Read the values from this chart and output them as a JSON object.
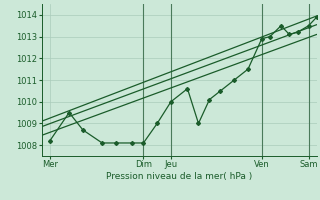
{
  "xlabel": "Pression niveau de la mer( hPa )",
  "bg_color": "#cce8d8",
  "plot_bg_color": "#cce8d8",
  "grid_color": "#aaccbb",
  "line_color": "#1a5c2a",
  "vline_color": "#4a7a5a",
  "ylim": [
    1007.5,
    1014.5
  ],
  "xlim": [
    0.0,
    1.0
  ],
  "yticks": [
    1008,
    1009,
    1010,
    1011,
    1012,
    1013,
    1014
  ],
  "xtick_positions": [
    0.03,
    0.37,
    0.47,
    0.8,
    0.97
  ],
  "xtick_labels": [
    "Mer",
    "Dim",
    "Jeu",
    "Ven",
    "Sam"
  ],
  "vlines": [
    0.37,
    0.47,
    0.8,
    0.97
  ],
  "zigzag_x": [
    0.03,
    0.1,
    0.15,
    0.22,
    0.27,
    0.33,
    0.37,
    0.42,
    0.47,
    0.53,
    0.57,
    0.61,
    0.65,
    0.7,
    0.75,
    0.8,
    0.83,
    0.87,
    0.9,
    0.93,
    0.97,
    1.0
  ],
  "zigzag_y": [
    1008.2,
    1009.5,
    1008.7,
    1008.1,
    1008.1,
    1008.1,
    1008.1,
    1009.0,
    1010.0,
    1010.6,
    1009.0,
    1010.1,
    1010.5,
    1011.0,
    1011.5,
    1012.9,
    1013.0,
    1013.5,
    1013.1,
    1013.2,
    1013.5,
    1013.9
  ],
  "trend_lines": [
    {
      "x": [
        0.0,
        1.0
      ],
      "y": [
        1008.85,
        1013.55
      ]
    },
    {
      "x": [
        0.0,
        1.0
      ],
      "y": [
        1008.45,
        1013.1
      ]
    },
    {
      "x": [
        0.0,
        1.0
      ],
      "y": [
        1009.1,
        1013.95
      ]
    }
  ],
  "marker": "D",
  "marker_size": 2.0,
  "line_width": 0.9,
  "tick_labelsize": 6,
  "xlabel_fontsize": 6.5
}
